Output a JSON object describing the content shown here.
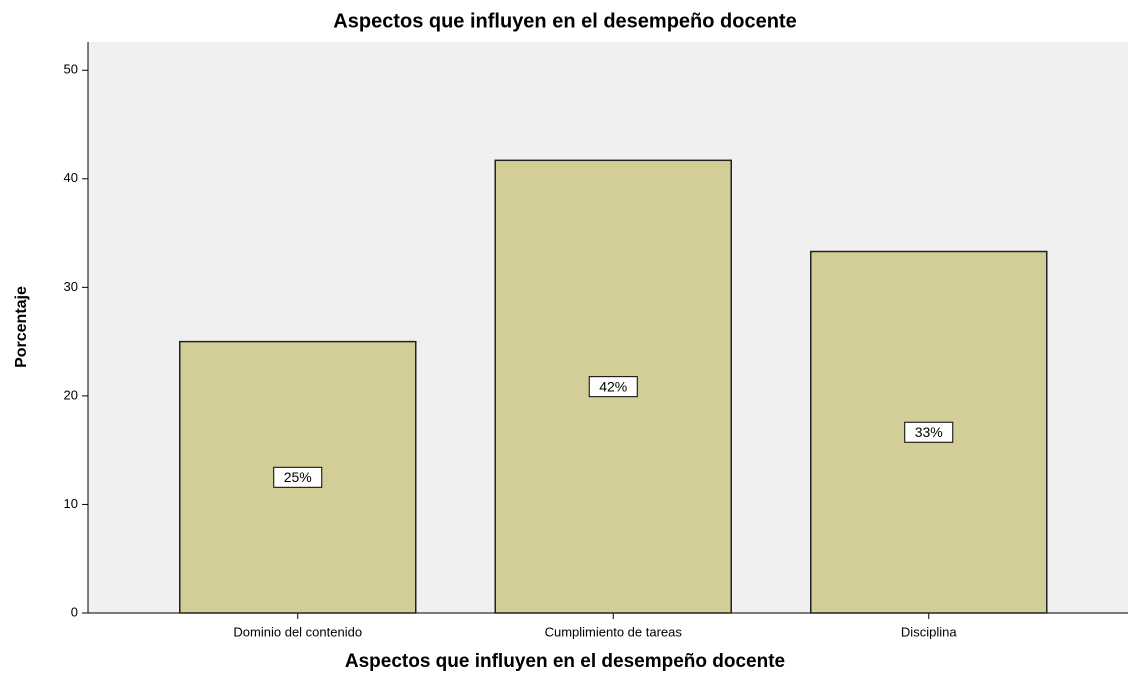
{
  "chart_data": {
    "type": "bar",
    "title": "Aspectos que influyen en el desempeño docente",
    "x_label": "Aspectos que influyen en el desempeño docente",
    "y_label": "Porcentaje",
    "categories": [
      "Dominio del contenido",
      "Cumplimiento de tareas",
      "Disciplina"
    ],
    "values": [
      25,
      41.7,
      33.3
    ],
    "value_labels": [
      "25%",
      "42%",
      "33%"
    ],
    "color": "#d3ce97",
    "ylim": [
      0,
      52.6
    ],
    "yticks": [
      0,
      10,
      20,
      30,
      40,
      50
    ],
    "grid": false
  }
}
